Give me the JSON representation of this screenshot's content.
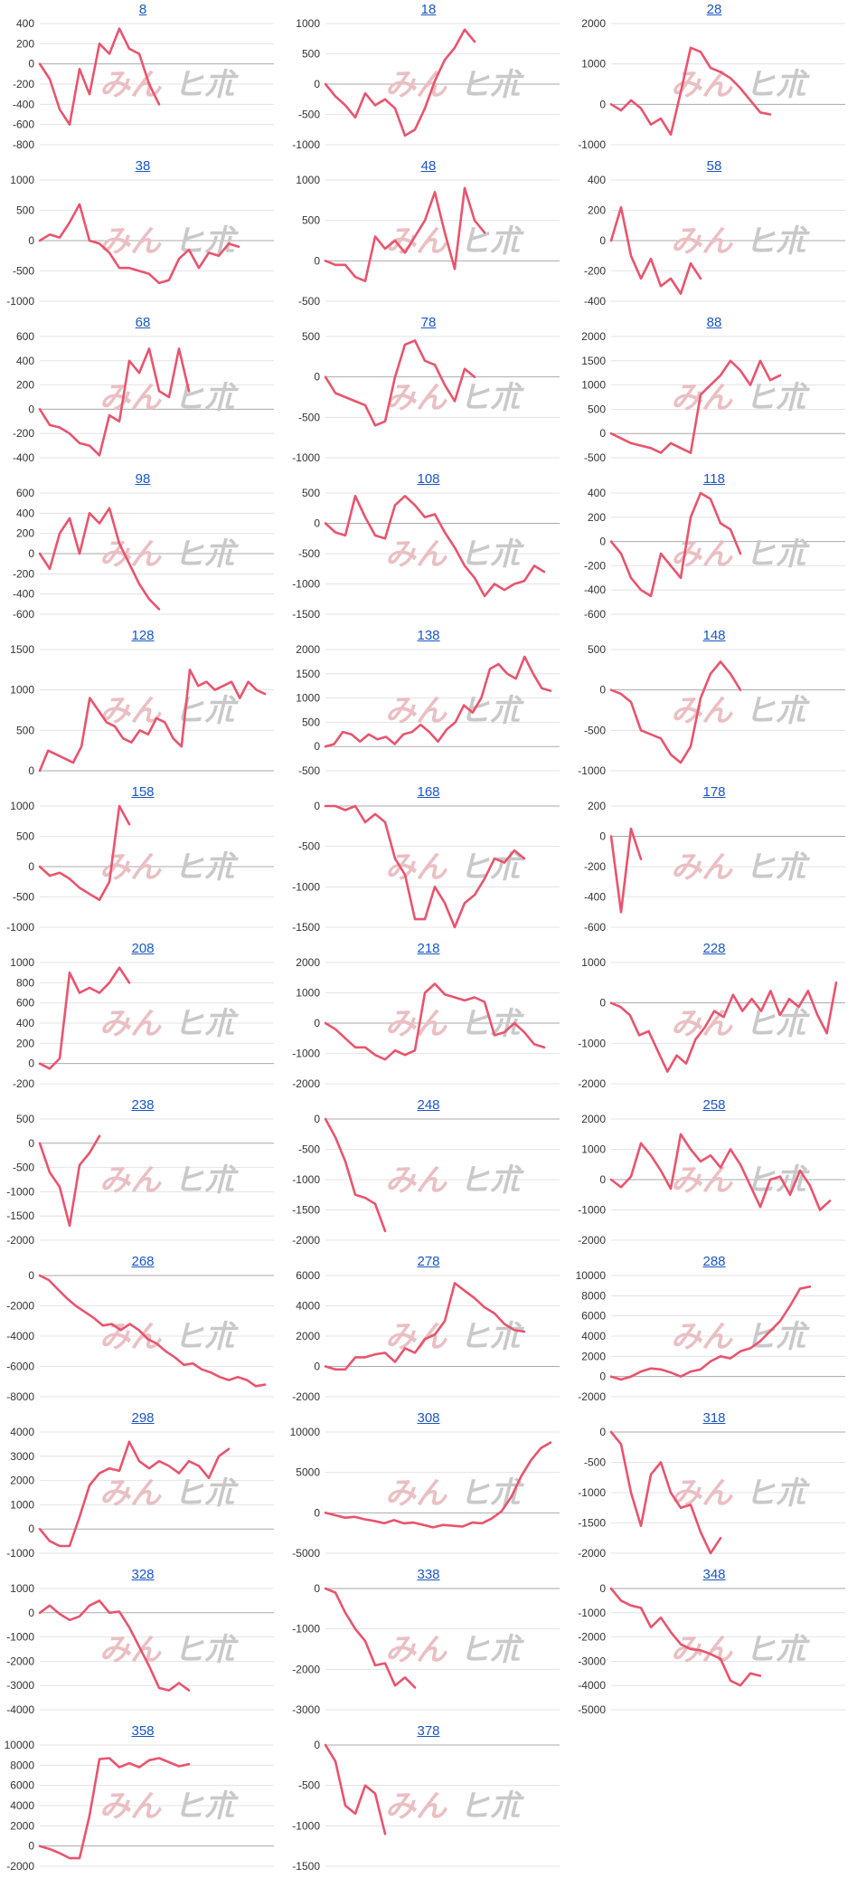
{
  "colors": {
    "line": "#e8546e",
    "grid": "#dddddd",
    "axis": "#aaaaaa",
    "title": "#1a56c4"
  },
  "watermark": {
    "left": "みん",
    "right": "ヒ朮"
  },
  "chart_data": [
    {
      "type": "line",
      "title": "8",
      "ylim": [
        -800,
        400
      ],
      "yticks": [
        400,
        200,
        0,
        -200,
        -400,
        -600,
        -800
      ],
      "values": [
        0,
        -150,
        -450,
        -600,
        -50,
        -300,
        200,
        100,
        350,
        150,
        100,
        -200,
        -400
      ]
    },
    {
      "type": "line",
      "title": "18",
      "ylim": [
        -1000,
        1000
      ],
      "yticks": [
        1000,
        500,
        0,
        -500,
        -1000
      ],
      "values": [
        0,
        -200,
        -350,
        -550,
        -150,
        -350,
        -250,
        -400,
        -850,
        -750,
        -400,
        50,
        400,
        600,
        900,
        700
      ]
    },
    {
      "type": "line",
      "title": "28",
      "ylim": [
        -1000,
        2000
      ],
      "yticks": [
        2000,
        1000,
        0,
        -1000
      ],
      "values": [
        0,
        -150,
        100,
        -100,
        -500,
        -350,
        -750,
        300,
        1400,
        1300,
        900,
        800,
        650,
        400,
        100,
        -200,
        -250
      ]
    },
    {
      "type": "line",
      "title": "38",
      "ylim": [
        -1000,
        1000
      ],
      "yticks": [
        1000,
        500,
        0,
        -500,
        -1000
      ],
      "values": [
        0,
        100,
        50,
        300,
        600,
        0,
        -50,
        -200,
        -450,
        -450,
        -500,
        -550,
        -700,
        -650,
        -300,
        -150,
        -450,
        -200,
        -250,
        -50,
        -100
      ]
    },
    {
      "type": "line",
      "title": "48",
      "ylim": [
        -500,
        1000
      ],
      "yticks": [
        1000,
        500,
        0,
        -500
      ],
      "values": [
        0,
        -50,
        -50,
        -200,
        -250,
        300,
        150,
        250,
        100,
        300,
        500,
        850,
        350,
        -100,
        900,
        500,
        350
      ]
    },
    {
      "type": "line",
      "title": "58",
      "ylim": [
        -400,
        400
      ],
      "yticks": [
        400,
        200,
        0,
        -200,
        -400
      ],
      "values": [
        0,
        220,
        -100,
        -250,
        -120,
        -300,
        -250,
        -350,
        -150,
        -250
      ]
    },
    {
      "type": "line",
      "title": "68",
      "ylim": [
        -400,
        600
      ],
      "yticks": [
        600,
        400,
        200,
        0,
        -200,
        -400
      ],
      "values": [
        0,
        -130,
        -150,
        -200,
        -280,
        -300,
        -380,
        -50,
        -100,
        400,
        300,
        500,
        150,
        100,
        500,
        150
      ]
    },
    {
      "type": "line",
      "title": "78",
      "ylim": [
        -1000,
        500
      ],
      "yticks": [
        500,
        0,
        -500,
        -1000
      ],
      "values": [
        0,
        -200,
        -250,
        -300,
        -350,
        -600,
        -550,
        0,
        400,
        450,
        200,
        150,
        -100,
        -300,
        100,
        0
      ]
    },
    {
      "type": "line",
      "title": "88",
      "ylim": [
        -500,
        2000
      ],
      "yticks": [
        2000,
        1500,
        1000,
        500,
        0,
        -500
      ],
      "values": [
        0,
        -100,
        -200,
        -250,
        -300,
        -400,
        -200,
        -300,
        -400,
        800,
        1000,
        1200,
        1500,
        1300,
        1000,
        1500,
        1100,
        1200
      ]
    },
    {
      "type": "line",
      "title": "98",
      "ylim": [
        -600,
        600
      ],
      "yticks": [
        600,
        400,
        200,
        0,
        -200,
        -400,
        -600
      ],
      "values": [
        0,
        -150,
        200,
        350,
        0,
        400,
        300,
        450,
        100,
        -100,
        -300,
        -450,
        -550
      ]
    },
    {
      "type": "line",
      "title": "108",
      "ylim": [
        -1500,
        500
      ],
      "yticks": [
        500,
        0,
        -500,
        -1000,
        -1500
      ],
      "values": [
        0,
        -150,
        -200,
        450,
        100,
        -200,
        -250,
        300,
        450,
        300,
        100,
        150,
        -150,
        -400,
        -700,
        -900,
        -1200,
        -1000,
        -1100,
        -1000,
        -950,
        -700,
        -800
      ]
    },
    {
      "type": "line",
      "title": "118",
      "ylim": [
        -600,
        400
      ],
      "yticks": [
        400,
        200,
        0,
        -200,
        -400,
        -600
      ],
      "values": [
        0,
        -100,
        -300,
        -400,
        -450,
        -100,
        -200,
        -300,
        200,
        400,
        350,
        150,
        100,
        -100
      ]
    },
    {
      "type": "line",
      "title": "128",
      "ylim": [
        0,
        1500
      ],
      "yticks": [
        1500,
        1000,
        500,
        0
      ],
      "values": [
        0,
        250,
        200,
        150,
        100,
        300,
        900,
        750,
        600,
        550,
        400,
        350,
        500,
        450,
        650,
        600,
        400,
        300,
        1250,
        1050,
        1100,
        1000,
        1050,
        1100,
        900,
        1100,
        1000,
        950
      ]
    },
    {
      "type": "line",
      "title": "138",
      "ylim": [
        -500,
        2000
      ],
      "yticks": [
        2000,
        1500,
        1000,
        500,
        0,
        -500
      ],
      "values": [
        0,
        50,
        300,
        250,
        100,
        250,
        150,
        200,
        50,
        250,
        300,
        450,
        300,
        100,
        350,
        500,
        850,
        700,
        1000,
        1600,
        1700,
        1500,
        1400,
        1850,
        1500,
        1200,
        1150
      ]
    },
    {
      "type": "line",
      "title": "148",
      "ylim": [
        -1000,
        500
      ],
      "yticks": [
        500,
        0,
        -500,
        -1000
      ],
      "values": [
        0,
        -50,
        -150,
        -500,
        -550,
        -600,
        -800,
        -900,
        -700,
        -100,
        200,
        350,
        200,
        0
      ]
    },
    {
      "type": "line",
      "title": "158",
      "ylim": [
        -1000,
        1000
      ],
      "yticks": [
        1000,
        500,
        0,
        -500,
        -1000
      ],
      "values": [
        0,
        -150,
        -100,
        -200,
        -350,
        -450,
        -550,
        -250,
        1000,
        700
      ]
    },
    {
      "type": "line",
      "title": "168",
      "ylim": [
        -1500,
        0
      ],
      "yticks": [
        0,
        -500,
        -1000,
        -1500
      ],
      "values": [
        0,
        0,
        -50,
        0,
        -200,
        -100,
        -200,
        -650,
        -850,
        -1400,
        -1400,
        -1000,
        -1200,
        -1500,
        -1200,
        -1100,
        -900,
        -650,
        -700,
        -550,
        -650
      ]
    },
    {
      "type": "line",
      "title": "178",
      "ylim": [
        -600,
        200
      ],
      "yticks": [
        200,
        0,
        -200,
        -400,
        -600
      ],
      "values": [
        0,
        -500,
        50,
        -150
      ]
    },
    {
      "type": "line",
      "title": "208",
      "ylim": [
        -200,
        1000
      ],
      "yticks": [
        1000,
        800,
        600,
        400,
        200,
        0,
        -200
      ],
      "values": [
        0,
        -50,
        50,
        900,
        700,
        750,
        700,
        800,
        950,
        800
      ]
    },
    {
      "type": "line",
      "title": "218",
      "ylim": [
        -2000,
        2000
      ],
      "yticks": [
        2000,
        1000,
        0,
        -1000,
        -2000
      ],
      "values": [
        0,
        -200,
        -500,
        -800,
        -800,
        -1050,
        -1200,
        -900,
        -1050,
        -900,
        1000,
        1300,
        950,
        850,
        750,
        850,
        700,
        -400,
        -300,
        0,
        -300,
        -700,
        -800
      ]
    },
    {
      "type": "line",
      "title": "228",
      "ylim": [
        -2000,
        1000
      ],
      "yticks": [
        1000,
        0,
        -1000,
        -2000
      ],
      "values": [
        0,
        -100,
        -300,
        -800,
        -700,
        -1200,
        -1700,
        -1300,
        -1500,
        -900,
        -600,
        -200,
        -350,
        200,
        -200,
        100,
        -200,
        300,
        -300,
        100,
        -100,
        300,
        -300,
        -750,
        500
      ]
    },
    {
      "type": "line",
      "title": "238",
      "ylim": [
        -2000,
        500
      ],
      "yticks": [
        500,
        0,
        -500,
        -1000,
        -1500,
        -2000
      ],
      "values": [
        0,
        -600,
        -900,
        -1700,
        -450,
        -200,
        150
      ]
    },
    {
      "type": "line",
      "title": "248",
      "ylim": [
        -2000,
        0
      ],
      "yticks": [
        0,
        -500,
        -1000,
        -1500,
        -2000
      ],
      "values": [
        0,
        -300,
        -700,
        -1250,
        -1300,
        -1400,
        -1850
      ]
    },
    {
      "type": "line",
      "title": "258",
      "ylim": [
        -2000,
        2000
      ],
      "yticks": [
        2000,
        1000,
        0,
        -1000,
        -2000
      ],
      "values": [
        0,
        -250,
        100,
        1200,
        800,
        300,
        -300,
        1500,
        1000,
        600,
        800,
        400,
        1000,
        500,
        -200,
        -900,
        0,
        100,
        -500,
        300,
        -200,
        -1000,
        -700
      ]
    },
    {
      "type": "line",
      "title": "268",
      "ylim": [
        -8000,
        0
      ],
      "yticks": [
        0,
        -2000,
        -4000,
        -6000,
        -8000
      ],
      "values": [
        0,
        -300,
        -900,
        -1500,
        -2000,
        -2400,
        -2800,
        -3300,
        -3200,
        -3600,
        -3200,
        -3600,
        -4200,
        -4500,
        -5000,
        -5400,
        -5900,
        -5800,
        -6200,
        -6400,
        -6700,
        -6900,
        -6700,
        -6900,
        -7300,
        -7200
      ]
    },
    {
      "type": "line",
      "title": "278",
      "ylim": [
        -2000,
        6000
      ],
      "yticks": [
        6000,
        4000,
        2000,
        0,
        -2000
      ],
      "values": [
        0,
        -200,
        -200,
        600,
        600,
        800,
        900,
        300,
        1200,
        900,
        1800,
        2100,
        3000,
        5500,
        5000,
        4500,
        3900,
        3500,
        2800,
        2400,
        2300
      ]
    },
    {
      "type": "line",
      "title": "288",
      "ylim": [
        -2000,
        10000
      ],
      "yticks": [
        10000,
        8000,
        6000,
        4000,
        2000,
        0,
        -2000
      ],
      "values": [
        0,
        -300,
        0,
        500,
        800,
        700,
        400,
        0,
        500,
        700,
        1500,
        2000,
        1800,
        2500,
        2800,
        3500,
        4500,
        5500,
        7000,
        8700,
        8900
      ]
    },
    {
      "type": "line",
      "title": "298",
      "ylim": [
        -1000,
        4000
      ],
      "yticks": [
        4000,
        3000,
        2000,
        1000,
        0,
        -1000
      ],
      "values": [
        0,
        -500,
        -700,
        -700,
        500,
        1800,
        2300,
        2500,
        2400,
        3600,
        2800,
        2500,
        2800,
        2600,
        2300,
        2800,
        2600,
        2100,
        3000,
        3300
      ]
    },
    {
      "type": "line",
      "title": "308",
      "ylim": [
        -5000,
        10000
      ],
      "yticks": [
        10000,
        5000,
        0,
        -5000
      ],
      "values": [
        0,
        -300,
        -600,
        -500,
        -800,
        -1000,
        -1300,
        -900,
        -1300,
        -1200,
        -1500,
        -1800,
        -1500,
        -1600,
        -1700,
        -1200,
        -1300,
        -700,
        200,
        2000,
        4500,
        6500,
        8000,
        8700
      ]
    },
    {
      "type": "line",
      "title": "318",
      "ylim": [
        -2000,
        0
      ],
      "yticks": [
        0,
        -500,
        -1000,
        -1500,
        -2000
      ],
      "values": [
        0,
        -200,
        -1000,
        -1550,
        -700,
        -500,
        -1000,
        -1250,
        -1200,
        -1650,
        -2000,
        -1750
      ]
    },
    {
      "type": "line",
      "title": "328",
      "ylim": [
        -4000,
        1000
      ],
      "yticks": [
        1000,
        0,
        -1000,
        -2000,
        -3000,
        -4000
      ],
      "values": [
        0,
        300,
        -50,
        -300,
        -150,
        300,
        500,
        0,
        50,
        -600,
        -1400,
        -2200,
        -3100,
        -3200,
        -2900,
        -3200
      ]
    },
    {
      "type": "line",
      "title": "338",
      "ylim": [
        -3000,
        0
      ],
      "yticks": [
        0,
        -1000,
        -2000,
        -3000
      ],
      "values": [
        0,
        -100,
        -600,
        -1000,
        -1300,
        -1900,
        -1850,
        -2400,
        -2200,
        -2450
      ]
    },
    {
      "type": "line",
      "title": "348",
      "ylim": [
        -5000,
        0
      ],
      "yticks": [
        0,
        -1000,
        -2000,
        -3000,
        -4000,
        -5000
      ],
      "values": [
        0,
        -500,
        -700,
        -800,
        -1600,
        -1200,
        -1800,
        -2300,
        -2500,
        -2550,
        -2700,
        -2900,
        -3800,
        -4000,
        -3500,
        -3600
      ]
    },
    {
      "type": "line",
      "title": "358",
      "ylim": [
        -2000,
        10000
      ],
      "yticks": [
        10000,
        8000,
        6000,
        4000,
        2000,
        0,
        -2000
      ],
      "values": [
        0,
        -300,
        -700,
        -1200,
        -1200,
        3000,
        8600,
        8700,
        7800,
        8200,
        7800,
        8500,
        8700,
        8300,
        7900,
        8100
      ]
    },
    {
      "type": "line",
      "title": "378",
      "ylim": [
        -1500,
        0
      ],
      "yticks": [
        0,
        -500,
        -1000,
        -1500
      ],
      "values": [
        0,
        -200,
        -750,
        -850,
        -500,
        -600,
        -1100
      ]
    }
  ]
}
